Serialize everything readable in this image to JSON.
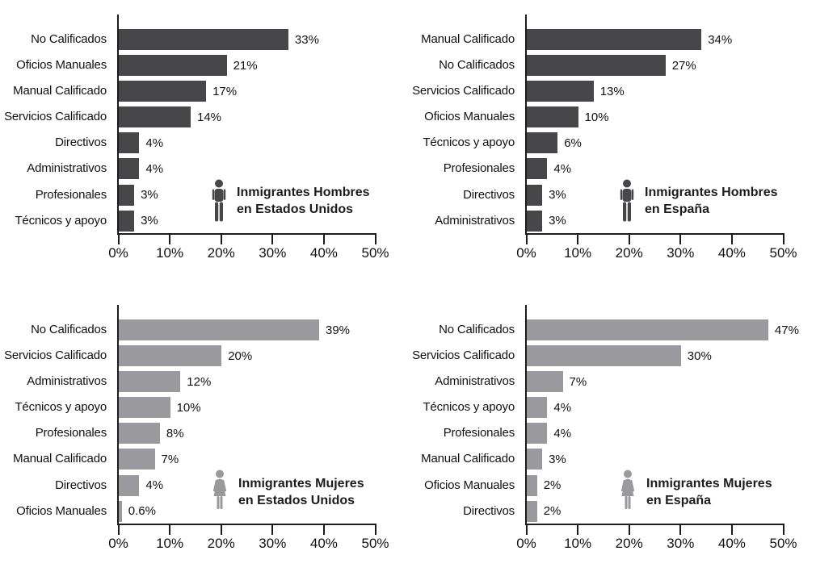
{
  "page": {
    "background": "#ffffff"
  },
  "colors": {
    "dark_bar": "#47474a",
    "light_bar": "#9a9a9e",
    "axis_line": "#1c1c1c",
    "text": "#111111"
  },
  "chart_data": [
    {
      "id": "hombres-estados-unidos",
      "type": "bar",
      "orientation": "horizontal",
      "title": [
        "Inmigrantes Hombres",
        "en Estados Unidos"
      ],
      "gender_icon": "male",
      "bar_color": "#47474a",
      "icon_color": "#47474a",
      "categories": [
        "No Calificados",
        "Oficios Manuales",
        "Manual Calificado",
        "Servicios Calificado",
        "Directivos",
        "Administrativos",
        "Profesionales",
        "Técnicos y apoyo"
      ],
      "values": [
        33,
        21,
        17,
        14,
        4,
        4,
        3,
        3
      ],
      "value_labels": [
        "33%",
        "21%",
        "17%",
        "14%",
        "4%",
        "4%",
        "3%",
        "3%"
      ],
      "x_ticks": [
        "0%",
        "10%",
        "20%",
        "30%",
        "40%",
        "50%"
      ],
      "xlim": [
        0,
        50
      ],
      "grid": false
    },
    {
      "id": "hombres-espana",
      "type": "bar",
      "orientation": "horizontal",
      "title": [
        "Inmigrantes Hombres",
        "en España"
      ],
      "gender_icon": "male",
      "bar_color": "#47474a",
      "icon_color": "#47474a",
      "categories": [
        "Manual Calificado",
        "No Calificados",
        "Servicios Calificado",
        "Oficios Manuales",
        "Técnicos y apoyo",
        "Profesionales",
        "Directivos",
        "Administrativos"
      ],
      "values": [
        34,
        27,
        13,
        10,
        6,
        4,
        3,
        3
      ],
      "value_labels": [
        "34%",
        "27%",
        "13%",
        "10%",
        "6%",
        "4%",
        "3%",
        "3%"
      ],
      "x_ticks": [
        "0%",
        "10%",
        "20%",
        "30%",
        "40%",
        "50%"
      ],
      "xlim": [
        0,
        50
      ],
      "grid": false
    },
    {
      "id": "mujeres-estados-unidos",
      "type": "bar",
      "orientation": "horizontal",
      "title": [
        "Inmigrantes Mujeres",
        "en Estados Unidos"
      ],
      "gender_icon": "female",
      "bar_color": "#9a9a9e",
      "icon_color": "#9a9a9e",
      "categories": [
        "No Calificados",
        "Servicios Calificado",
        "Administrativos",
        "Técnicos y apoyo",
        "Profesionales",
        "Manual Calificado",
        "Directivos",
        "Oficios Manuales"
      ],
      "values": [
        39,
        20,
        12,
        10,
        8,
        7,
        4,
        0.6
      ],
      "value_labels": [
        "39%",
        "20%",
        "12%",
        "10%",
        "8%",
        "7%",
        "4%",
        "0.6%"
      ],
      "x_ticks": [
        "0%",
        "10%",
        "20%",
        "30%",
        "40%",
        "50%"
      ],
      "xlim": [
        0,
        50
      ],
      "grid": false
    },
    {
      "id": "mujeres-espana",
      "type": "bar",
      "orientation": "horizontal",
      "title": [
        "Inmigrantes Mujeres",
        "en España"
      ],
      "gender_icon": "female",
      "bar_color": "#9a9a9e",
      "icon_color": "#9a9a9e",
      "categories": [
        "No Calificados",
        "Servicios Calificado",
        "Administrativos",
        "Técnicos y apoyo",
        "Profesionales",
        "Manual Calificado",
        "Oficios Manuales",
        "Directivos"
      ],
      "values": [
        47,
        30,
        7,
        4,
        4,
        3,
        2,
        2
      ],
      "value_labels": [
        "47%",
        "30%",
        "7%",
        "4%",
        "4%",
        "3%",
        "2%",
        "2%"
      ],
      "x_ticks": [
        "0%",
        "10%",
        "20%",
        "30%",
        "40%",
        "50%"
      ],
      "xlim": [
        0,
        50
      ],
      "grid": false
    }
  ]
}
